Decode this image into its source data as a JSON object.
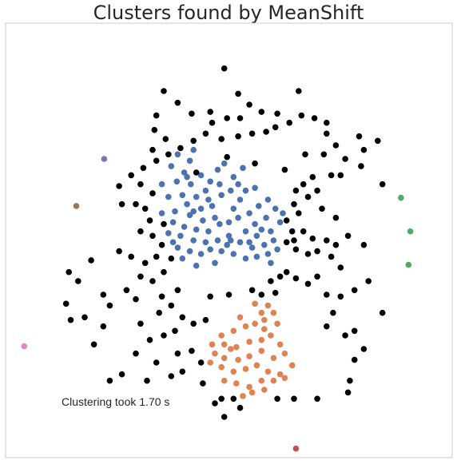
{
  "chart_data": {
    "type": "scatter",
    "title": "Clusters found by MeanShift",
    "xlabel": "",
    "ylabel": "",
    "xlim": [
      -2.4,
      2.4
    ],
    "ylim": [
      -2.4,
      2.4
    ],
    "grid": false,
    "annotation": "Clustering took 1.70 s",
    "colors": {
      "outlier": "#000000",
      "blue": "#4c72b0",
      "orange": "#dd8452",
      "green": "#55a868",
      "red": "#c44e52",
      "purple": "#8172b3",
      "brown": "#937860",
      "pink": "#da8bc3"
    },
    "series": [
      {
        "color_key": "blue",
        "points": [
          [
            -0.38,
            1.0
          ],
          [
            -0.55,
            0.95
          ],
          [
            -0.42,
            0.88
          ],
          [
            -0.62,
            0.82
          ],
          [
            -0.48,
            0.75
          ],
          [
            -0.56,
            0.65
          ],
          [
            -0.72,
            0.62
          ],
          [
            -0.41,
            0.62
          ],
          [
            -0.3,
            0.72
          ],
          [
            -0.2,
            0.65
          ],
          [
            -0.1,
            0.62
          ],
          [
            -0.25,
            0.55
          ],
          [
            -0.35,
            0.48
          ],
          [
            -0.5,
            0.5
          ],
          [
            -0.65,
            0.48
          ],
          [
            -0.45,
            0.4
          ],
          [
            -0.3,
            0.35
          ],
          [
            -0.18,
            0.38
          ],
          [
            -0.08,
            0.5
          ],
          [
            0.02,
            0.55
          ],
          [
            0.12,
            0.45
          ],
          [
            0.05,
            0.35
          ],
          [
            -0.15,
            0.25
          ],
          [
            -0.28,
            0.22
          ],
          [
            -0.42,
            0.28
          ],
          [
            -0.58,
            0.32
          ],
          [
            -0.72,
            0.3
          ],
          [
            -0.6,
            0.2
          ],
          [
            -0.48,
            0.15
          ],
          [
            -0.35,
            0.12
          ],
          [
            -0.22,
            0.1
          ],
          [
            -0.1,
            0.18
          ],
          [
            0.0,
            0.2
          ],
          [
            0.1,
            0.25
          ],
          [
            0.22,
            0.3
          ],
          [
            0.32,
            0.38
          ],
          [
            0.42,
            0.45
          ],
          [
            0.5,
            0.35
          ],
          [
            0.4,
            0.25
          ],
          [
            0.28,
            0.18
          ],
          [
            0.18,
            0.1
          ],
          [
            0.3,
            0.05
          ],
          [
            0.45,
            0.1
          ],
          [
            0.55,
            0.2
          ],
          [
            0.48,
            0.0
          ],
          [
            0.38,
            -0.05
          ],
          [
            0.25,
            -0.08
          ],
          [
            0.12,
            -0.02
          ],
          [
            0.0,
            0.05
          ],
          [
            -0.12,
            0.0
          ],
          [
            -0.25,
            -0.02
          ],
          [
            -0.38,
            0.0
          ],
          [
            -0.52,
            0.05
          ],
          [
            -0.65,
            0.08
          ],
          [
            -0.55,
            -0.08
          ],
          [
            -0.42,
            -0.12
          ],
          [
            -0.3,
            -0.15
          ],
          [
            -0.2,
            -0.1
          ],
          [
            -0.08,
            -0.12
          ],
          [
            0.05,
            -0.15
          ],
          [
            0.18,
            -0.2
          ],
          [
            0.3,
            -0.18
          ],
          [
            0.42,
            -0.15
          ],
          [
            0.52,
            -0.1
          ],
          [
            0.45,
            -0.25
          ],
          [
            -0.15,
            -0.25
          ],
          [
            -0.35,
            -0.28
          ],
          [
            -0.5,
            -0.2
          ],
          [
            -0.22,
            0.45
          ],
          [
            0.05,
            0.7
          ],
          [
            0.15,
            0.8
          ],
          [
            -0.05,
            0.85
          ],
          [
            0.28,
            0.58
          ],
          [
            0.35,
            0.12
          ],
          [
            -0.38,
            0.32
          ],
          [
            0.22,
            -0.02
          ],
          [
            -0.02,
            -0.05
          ],
          [
            -0.6,
            -0.02
          ],
          [
            0.58,
            0.3
          ],
          [
            0.1,
            0.62
          ],
          [
            -0.12,
            0.78
          ],
          [
            0.18,
            0.55
          ],
          [
            -0.45,
            0.7
          ],
          [
            0.02,
            0.0
          ]
        ]
      },
      {
        "color_key": "orange",
        "points": [
          [
            0.28,
            -0.7
          ],
          [
            0.42,
            -0.72
          ],
          [
            0.35,
            -0.8
          ],
          [
            0.48,
            -0.8
          ],
          [
            0.38,
            -0.88
          ],
          [
            0.52,
            -0.92
          ],
          [
            0.28,
            -0.92
          ],
          [
            0.18,
            -0.95
          ],
          [
            0.05,
            -1.0
          ],
          [
            -0.08,
            -1.05
          ],
          [
            -0.05,
            -1.15
          ],
          [
            0.08,
            -1.18
          ],
          [
            0.22,
            -1.12
          ],
          [
            0.35,
            -1.1
          ],
          [
            0.45,
            -1.05
          ],
          [
            0.55,
            -1.15
          ],
          [
            0.6,
            -1.25
          ],
          [
            0.48,
            -1.3
          ],
          [
            0.35,
            -1.22
          ],
          [
            0.22,
            -1.28
          ],
          [
            0.1,
            -1.32
          ],
          [
            -0.05,
            -1.3
          ],
          [
            -0.15,
            -1.25
          ],
          [
            -0.2,
            -1.35
          ],
          [
            -0.08,
            -1.4
          ],
          [
            0.05,
            -1.45
          ],
          [
            0.18,
            -1.42
          ],
          [
            0.3,
            -1.38
          ],
          [
            0.42,
            -1.45
          ],
          [
            0.55,
            -1.48
          ],
          [
            0.48,
            -1.55
          ],
          [
            0.35,
            -1.55
          ],
          [
            0.22,
            -1.62
          ],
          [
            0.08,
            -1.58
          ],
          [
            -0.05,
            -1.55
          ],
          [
            0.25,
            -1.68
          ],
          [
            0.38,
            -1.65
          ],
          [
            0.15,
            -1.72
          ],
          [
            0.6,
            -1.52
          ],
          [
            -0.18,
            -1.15
          ],
          [
            0.12,
            -0.85
          ],
          [
            0.38,
            -0.98
          ],
          [
            0.02,
            -1.2
          ],
          [
            0.68,
            -1.38
          ]
        ]
      },
      {
        "color_key": "green",
        "points": [
          [
            1.85,
            0.47
          ],
          [
            1.95,
            0.1
          ],
          [
            1.93,
            -0.27
          ]
        ]
      },
      {
        "color_key": "red",
        "points": [
          [
            0.72,
            -2.3
          ]
        ]
      },
      {
        "color_key": "purple",
        "points": [
          [
            -1.34,
            0.9
          ]
        ]
      },
      {
        "color_key": "brown",
        "points": [
          [
            -1.64,
            0.38
          ]
        ]
      },
      {
        "color_key": "pink",
        "points": [
          [
            -2.2,
            -1.17
          ]
        ]
      },
      {
        "color_key": "outlier",
        "points": [
          [
            -0.05,
            1.9
          ],
          [
            0.1,
            1.62
          ],
          [
            0.75,
            1.65
          ],
          [
            -0.7,
            1.65
          ],
          [
            -0.55,
            1.52
          ],
          [
            -0.4,
            1.4
          ],
          [
            -0.2,
            1.42
          ],
          [
            -0.18,
            1.3
          ],
          [
            -0.02,
            1.35
          ],
          [
            0.12,
            1.35
          ],
          [
            0.22,
            1.5
          ],
          [
            0.35,
            1.42
          ],
          [
            0.52,
            1.4
          ],
          [
            0.65,
            1.3
          ],
          [
            0.78,
            1.38
          ],
          [
            0.92,
            1.35
          ],
          [
            1.05,
            1.3
          ],
          [
            0.5,
            1.25
          ],
          [
            0.4,
            1.2
          ],
          [
            0.25,
            1.18
          ],
          [
            0.1,
            1.15
          ],
          [
            -0.08,
            1.12
          ],
          [
            -0.25,
            1.18
          ],
          [
            -0.38,
            1.1
          ],
          [
            -0.52,
            1.02
          ],
          [
            -0.78,
            1.38
          ],
          [
            -0.8,
            1.22
          ],
          [
            -0.68,
            1.12
          ],
          [
            -0.82,
            1.0
          ],
          [
            -0.65,
            0.95
          ],
          [
            -0.78,
            0.88
          ],
          [
            -0.92,
            0.8
          ],
          [
            -1.05,
            0.72
          ],
          [
            -1.18,
            0.6
          ],
          [
            -0.95,
            0.62
          ],
          [
            -0.82,
            0.52
          ],
          [
            -1.15,
            0.4
          ],
          [
            -1.0,
            0.4
          ],
          [
            -0.9,
            0.35
          ],
          [
            -0.85,
            0.22
          ],
          [
            -0.7,
            0.18
          ],
          [
            -0.95,
            0.1
          ],
          [
            -0.82,
            0.05
          ],
          [
            -0.72,
            -0.05
          ],
          [
            -0.78,
            -0.18
          ],
          [
            -0.9,
            -0.25
          ],
          [
            -1.05,
            -0.18
          ],
          [
            -1.18,
            -0.12
          ],
          [
            -0.62,
            -0.2
          ],
          [
            -0.7,
            -0.35
          ],
          [
            -0.82,
            -0.45
          ],
          [
            -0.95,
            -0.4
          ],
          [
            -1.1,
            -0.55
          ],
          [
            -1.0,
            -0.65
          ],
          [
            -1.28,
            -0.72
          ],
          [
            -1.35,
            -0.6
          ],
          [
            -0.72,
            -0.62
          ],
          [
            -0.55,
            -0.55
          ],
          [
            -0.62,
            -0.72
          ],
          [
            -0.75,
            -0.8
          ],
          [
            -0.5,
            -0.85
          ],
          [
            -0.38,
            -0.92
          ],
          [
            -0.25,
            -0.88
          ],
          [
            -0.58,
            -1.0
          ],
          [
            -0.7,
            -1.05
          ],
          [
            -0.85,
            -1.1
          ],
          [
            -0.95,
            -0.92
          ],
          [
            -1.0,
            -1.25
          ],
          [
            -0.78,
            -1.35
          ],
          [
            -0.55,
            -1.25
          ],
          [
            -0.4,
            -1.22
          ],
          [
            -0.3,
            -1.35
          ],
          [
            -0.5,
            -1.45
          ],
          [
            -0.28,
            -1.58
          ],
          [
            -0.62,
            -1.5
          ],
          [
            -0.88,
            -1.55
          ],
          [
            -1.15,
            -1.48
          ],
          [
            -1.28,
            -1.55
          ],
          [
            -1.45,
            -1.15
          ],
          [
            -1.35,
            -0.95
          ],
          [
            -1.55,
            -0.85
          ],
          [
            -1.7,
            -0.88
          ],
          [
            -1.75,
            -0.7
          ],
          [
            -1.62,
            -0.45
          ],
          [
            -1.48,
            -0.22
          ],
          [
            -1.72,
            -0.35
          ],
          [
            1.05,
            1.18
          ],
          [
            1.15,
            1.05
          ],
          [
            1.02,
            0.95
          ],
          [
            1.25,
            0.9
          ],
          [
            1.45,
            1.0
          ],
          [
            1.4,
            1.15
          ],
          [
            1.6,
            1.1
          ],
          [
            1.1,
            0.72
          ],
          [
            0.9,
            0.7
          ],
          [
            0.8,
            0.62
          ],
          [
            0.72,
            0.55
          ],
          [
            1.2,
            0.72
          ],
          [
            1.42,
            0.82
          ],
          [
            1.65,
            0.62
          ],
          [
            0.95,
            0.55
          ],
          [
            0.85,
            0.48
          ],
          [
            0.7,
            0.4
          ],
          [
            0.75,
            0.3
          ],
          [
            0.62,
            0.22
          ],
          [
            0.68,
            0.1
          ],
          [
            0.7,
            0.0
          ],
          [
            0.62,
            -0.02
          ],
          [
            0.8,
            0.1
          ],
          [
            0.9,
            0.02
          ],
          [
            1.05,
            0.0
          ],
          [
            1.15,
            -0.05
          ],
          [
            1.28,
            0.05
          ],
          [
            1.45,
            -0.05
          ],
          [
            0.72,
            -0.1
          ],
          [
            0.85,
            -0.15
          ],
          [
            0.95,
            -0.12
          ],
          [
            1.1,
            -0.18
          ],
          [
            1.2,
            -0.3
          ],
          [
            0.62,
            -0.35
          ],
          [
            0.72,
            -0.42
          ],
          [
            0.85,
            -0.48
          ],
          [
            0.95,
            -0.4
          ],
          [
            1.05,
            -0.6
          ],
          [
            1.2,
            -0.62
          ],
          [
            1.35,
            -0.55
          ],
          [
            1.5,
            -0.45
          ],
          [
            1.65,
            -0.8
          ],
          [
            1.12,
            -0.8
          ],
          [
            1.05,
            -0.95
          ],
          [
            1.25,
            -1.05
          ],
          [
            1.35,
            -1.0
          ],
          [
            1.45,
            -1.2
          ],
          [
            1.35,
            -1.32
          ],
          [
            1.3,
            -1.55
          ],
          [
            1.28,
            -1.68
          ],
          [
            0.95,
            -1.75
          ],
          [
            0.7,
            -1.75
          ],
          [
            0.52,
            -1.75
          ],
          [
            0.05,
            -1.75
          ],
          [
            -0.08,
            -1.75
          ],
          [
            -0.05,
            -1.95
          ],
          [
            0.12,
            -1.85
          ],
          [
            -0.15,
            -1.8
          ],
          [
            0.25,
            -0.55
          ],
          [
            0.35,
            -0.6
          ],
          [
            0.5,
            -0.58
          ],
          [
            0.0,
            -0.6
          ],
          [
            -0.2,
            -0.62
          ],
          [
            -0.35,
            0.75
          ],
          [
            -0.02,
            0.92
          ],
          [
            0.6,
            0.78
          ],
          [
            0.28,
            0.85
          ],
          [
            0.82,
            0.95
          ],
          [
            1.0,
            0.35
          ],
          [
            1.15,
            0.25
          ],
          [
            0.55,
            -0.4
          ],
          [
            0.45,
            -0.45
          ]
        ]
      }
    ]
  }
}
